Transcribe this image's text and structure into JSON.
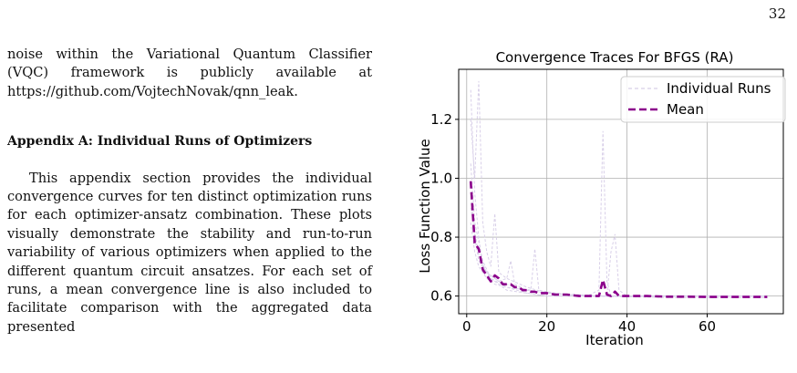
{
  "page": {
    "number": "32"
  },
  "left_column": {
    "intro_paragraph": "noise within the Variational Quantum Classifier (VQC) framework is publicly available at https://github.com/VojtechNovak/qnn_leak.",
    "appendix_heading": "Appendix A: Individual Runs of Optimizers",
    "appendix_paragraph": "This appendix section provides the individual convergence curves for ten distinct optimization runs for each optimizer-ansatz combination. These plots visually demonstrate the stability and run-to-run variability of various optimizers when applied to the different quantum circuit ansatzes. For each set of runs, a mean convergence line is also included to facilitate comparison with the aggregated data presented"
  },
  "chart_data": {
    "type": "line",
    "title": "Convergence Traces For BFGS (RA)",
    "xlabel": "Iteration",
    "ylabel": "Loss Function Value",
    "xlim": [
      -2,
      79
    ],
    "ylim": [
      0.54,
      1.37
    ],
    "xticks": [
      0,
      20,
      40,
      60
    ],
    "yticks": [
      0.6,
      0.8,
      1.0,
      1.2
    ],
    "xtick_labels": [
      "0",
      "20",
      "40",
      "60"
    ],
    "ytick_labels": [
      "0.6",
      "0.8",
      "1.0",
      "1.2"
    ],
    "grid": true,
    "legend": {
      "placement": "top-right",
      "entries": [
        "Individual Runs",
        "Mean"
      ]
    },
    "colors": {
      "mean": "#8b008b",
      "individual": "#d8cfe8"
    },
    "series": [
      {
        "name": "Mean",
        "style": "dashed",
        "x": [
          1,
          2,
          3,
          4,
          5,
          6,
          7,
          8,
          9,
          10,
          11,
          12,
          13,
          14,
          15,
          16,
          17,
          18,
          20,
          22,
          25,
          28,
          30,
          33,
          34,
          35,
          36,
          37,
          38,
          40,
          45,
          50,
          55,
          60,
          65,
          70,
          75
        ],
        "y": [
          0.99,
          0.78,
          0.76,
          0.69,
          0.67,
          0.65,
          0.67,
          0.66,
          0.64,
          0.64,
          0.64,
          0.63,
          0.63,
          0.62,
          0.62,
          0.615,
          0.615,
          0.61,
          0.61,
          0.605,
          0.605,
          0.6,
          0.6,
          0.6,
          0.655,
          0.605,
          0.6,
          0.615,
          0.6,
          0.6,
          0.6,
          0.598,
          0.598,
          0.597,
          0.597,
          0.597,
          0.597
        ]
      },
      {
        "name": "Individual Runs",
        "style": "dashed-faint",
        "runs": [
          {
            "x": [
              1,
              2,
              3,
              4,
              6,
              8,
              10,
              15,
              20,
              30,
              40,
              50,
              60,
              70,
              75
            ],
            "y": [
              1.3,
              0.95,
              0.8,
              0.7,
              0.66,
              0.64,
              0.62,
              0.61,
              0.6,
              0.6,
              0.6,
              0.6,
              0.6,
              0.6,
              0.6
            ]
          },
          {
            "x": [
              1,
              2,
              3,
              4,
              5,
              6,
              7,
              8,
              10,
              15,
              20,
              30,
              40,
              60,
              75
            ],
            "y": [
              1.2,
              1.0,
              1.33,
              0.85,
              0.75,
              0.7,
              0.88,
              0.68,
              0.66,
              0.63,
              0.61,
              0.6,
              0.6,
              0.6,
              0.6
            ]
          },
          {
            "x": [
              1,
              2,
              3,
              5,
              8,
              12,
              16,
              17,
              18,
              22,
              30,
              40,
              60,
              75
            ],
            "y": [
              0.95,
              0.8,
              0.72,
              0.68,
              0.65,
              0.63,
              0.62,
              0.76,
              0.62,
              0.61,
              0.6,
              0.6,
              0.6,
              0.6
            ]
          },
          {
            "x": [
              1,
              2,
              4,
              6,
              10,
              20,
              30,
              33,
              34,
              35,
              36,
              40,
              50,
              75
            ],
            "y": [
              1.05,
              0.85,
              0.72,
              0.66,
              0.63,
              0.61,
              0.6,
              0.62,
              1.16,
              0.65,
              0.6,
              0.6,
              0.6,
              0.6
            ]
          },
          {
            "x": [
              1,
              3,
              5,
              8,
              10,
              11,
              12,
              15,
              20,
              35,
              36,
              37,
              38,
              40,
              75
            ],
            "y": [
              0.9,
              0.74,
              0.68,
              0.65,
              0.66,
              0.72,
              0.64,
              0.62,
              0.61,
              0.6,
              0.75,
              0.81,
              0.62,
              0.6,
              0.6
            ]
          },
          {
            "x": [
              1,
              2,
              3,
              5,
              7,
              10,
              15,
              20,
              30,
              50,
              75
            ],
            "y": [
              0.85,
              0.75,
              0.7,
              0.66,
              0.64,
              0.63,
              0.61,
              0.6,
              0.6,
              0.595,
              0.595
            ]
          }
        ]
      }
    ]
  }
}
